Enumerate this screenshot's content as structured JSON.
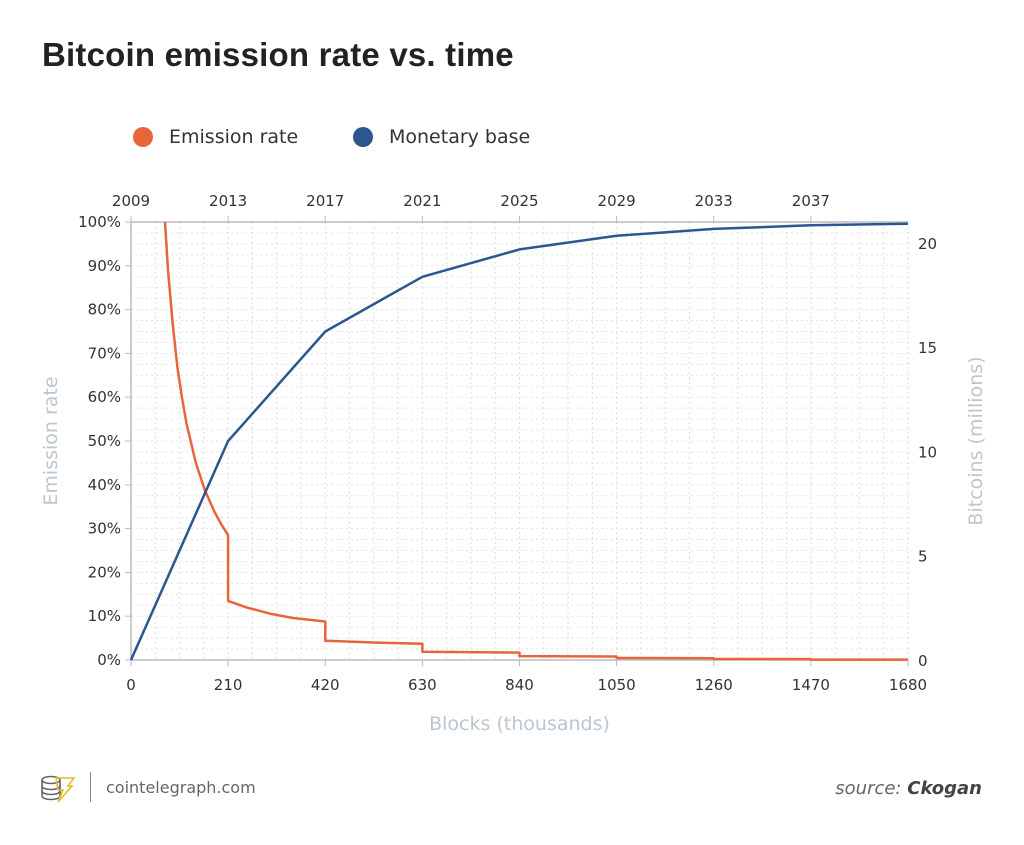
{
  "title": "Bitcoin emission rate vs. time",
  "footer": {
    "site": "cointelegraph.com",
    "source_label": "source:",
    "source_name": "Ckogan"
  },
  "chart_data": {
    "type": "line",
    "title": "Bitcoin emission rate vs. time",
    "xlabel": "Blocks (thousands)",
    "ylabel_left": "Emission rate",
    "ylabel_right": "Bitcoins (millions)",
    "xlim": [
      0,
      1680
    ],
    "ylim_left": [
      0,
      100
    ],
    "ylim_right": [
      0,
      21
    ],
    "x_ticks": [
      0,
      210,
      420,
      630,
      840,
      1050,
      1260,
      1470,
      1680
    ],
    "x_tick_labels": [
      "0",
      "210",
      "420",
      "630",
      "840",
      "1050",
      "1260",
      "1470",
      "1680"
    ],
    "top_ticks": [
      0,
      210,
      420,
      630,
      840,
      1050,
      1260,
      1470
    ],
    "top_tick_labels": [
      "2009",
      "2013",
      "2017",
      "2021",
      "2025",
      "2029",
      "2033",
      "2037"
    ],
    "y_left_ticks": [
      0,
      10,
      20,
      30,
      40,
      50,
      60,
      70,
      80,
      90,
      100
    ],
    "y_left_tick_labels": [
      "0%",
      "10%",
      "20%",
      "30%",
      "40%",
      "50%",
      "60%",
      "70%",
      "80%",
      "90%",
      "100%"
    ],
    "y_right_ticks": [
      0,
      5,
      10,
      15,
      20
    ],
    "y_right_tick_labels": [
      "0",
      "5",
      "10",
      "15",
      "20"
    ],
    "grid": true,
    "legend_placement": "top",
    "series": [
      {
        "name": "Emission rate",
        "axis": "left",
        "color": "#e8643a",
        "points": [
          [
            73.5,
            100
          ],
          [
            80,
            89
          ],
          [
            90,
            77
          ],
          [
            100,
            67
          ],
          [
            110,
            60
          ],
          [
            120,
            54
          ],
          [
            140,
            45
          ],
          [
            160,
            38.7
          ],
          [
            180,
            33.9
          ],
          [
            195,
            31
          ],
          [
            210,
            28.5
          ],
          [
            210,
            13.5
          ],
          [
            250,
            12
          ],
          [
            300,
            10.6
          ],
          [
            350,
            9.6
          ],
          [
            420,
            8.8
          ],
          [
            420,
            4.4
          ],
          [
            525,
            4.0
          ],
          [
            630,
            3.7
          ],
          [
            630,
            1.9
          ],
          [
            840,
            1.7
          ],
          [
            840,
            0.9
          ],
          [
            1050,
            0.8
          ],
          [
            1050,
            0.45
          ],
          [
            1260,
            0.4
          ],
          [
            1260,
            0.22
          ],
          [
            1470,
            0.2
          ],
          [
            1470,
            0.1
          ],
          [
            1680,
            0.1
          ]
        ]
      },
      {
        "name": "Monetary base",
        "axis": "right",
        "color": "#2d5690",
        "points": [
          [
            0,
            0
          ],
          [
            210,
            10.5
          ],
          [
            420,
            15.75
          ],
          [
            630,
            18.375
          ],
          [
            840,
            19.6875
          ],
          [
            1050,
            20.34
          ],
          [
            1260,
            20.67
          ],
          [
            1470,
            20.84
          ],
          [
            1680,
            20.92
          ]
        ]
      }
    ]
  }
}
